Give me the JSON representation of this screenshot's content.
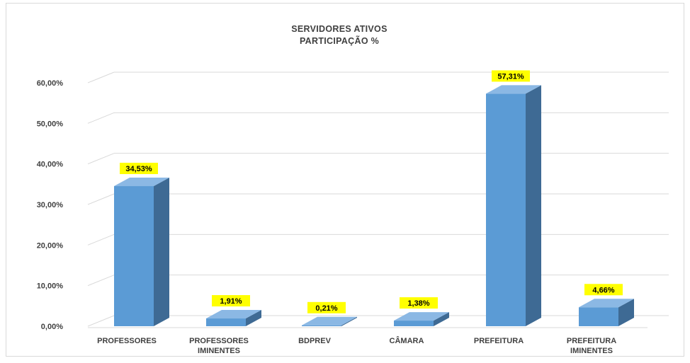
{
  "chart_data": {
    "type": "bar",
    "title": "SERVIDORES ATIVOS",
    "subtitle": "PARTICIPAÇÃO %",
    "categories": [
      [
        "PROFESSORES"
      ],
      [
        "PROFESSORES",
        "IMINENTES"
      ],
      [
        "BDPREV"
      ],
      [
        "CÂMARA"
      ],
      [
        "PREFEITURA"
      ],
      [
        "PREFEITURA",
        "IMINENTES"
      ]
    ],
    "values": [
      34.53,
      1.91,
      0.21,
      1.38,
      57.31,
      4.66
    ],
    "value_labels": [
      "34,53%",
      "1,91%",
      "0,21%",
      "1,38%",
      "57,31%",
      "4,66%"
    ],
    "yticks": [
      "0,00%",
      "10,00%",
      "20,00%",
      "30,00%",
      "40,00%",
      "50,00%",
      "60,00%"
    ],
    "ylim": [
      0,
      60
    ],
    "grid": true,
    "legend": "none",
    "bar_3d": true,
    "colors": {
      "bar_front": "#5b9bd5",
      "bar_side": "#3e6a94",
      "bar_top": "#8bb8e4",
      "label_bg": "#ffff00",
      "grid": "#d9d9d9"
    }
  }
}
